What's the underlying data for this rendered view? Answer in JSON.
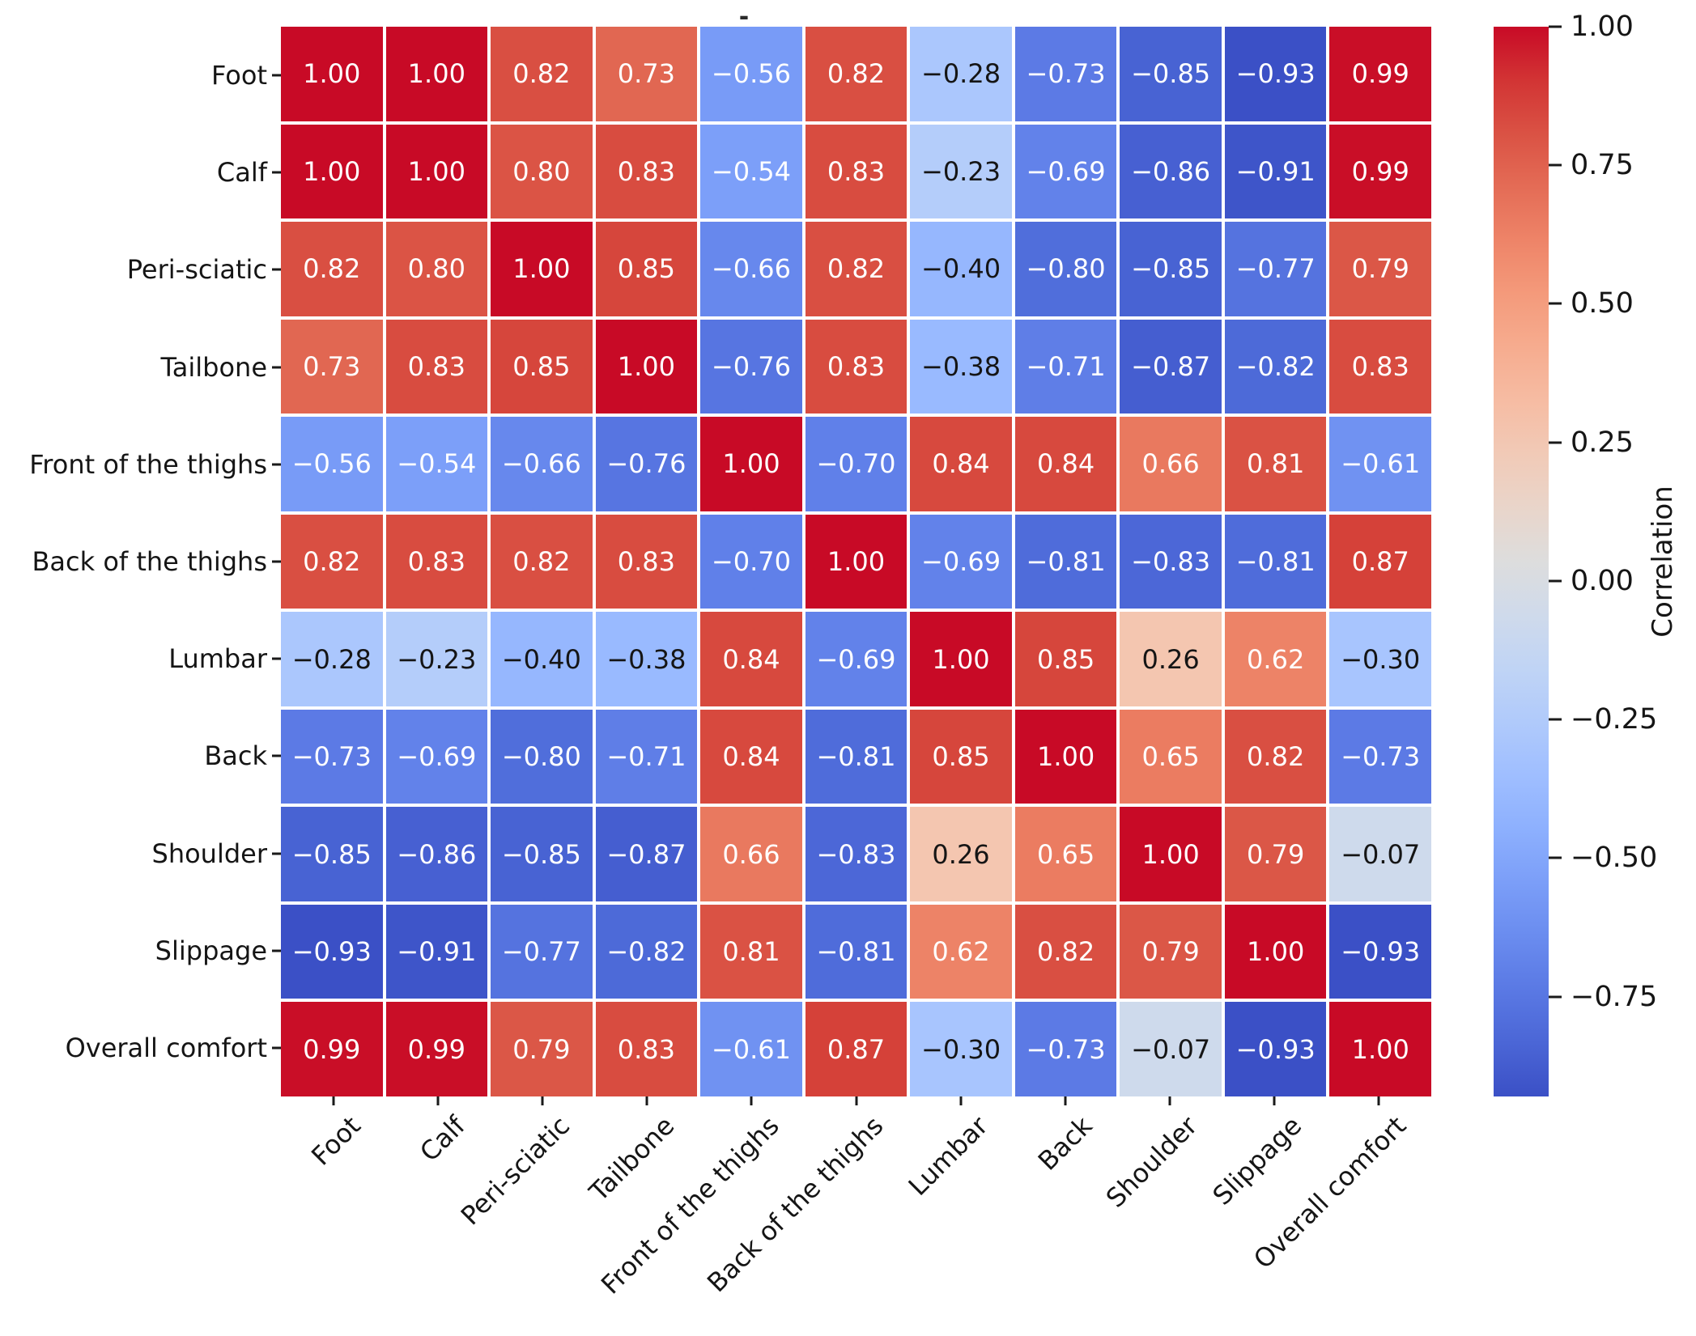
{
  "title": "-",
  "chart_data": {
    "type": "heatmap",
    "title": "-",
    "categories": [
      "Foot",
      "Calf",
      "Peri-sciatic",
      "Tailbone",
      "Front of the thighs",
      "Back of the thighs",
      "Lumbar",
      "Back",
      "Shoulder",
      "Slippage",
      "Overall comfort"
    ],
    "matrix": [
      [
        1.0,
        1.0,
        0.82,
        0.73,
        -0.56,
        0.82,
        -0.28,
        -0.73,
        -0.85,
        -0.93,
        0.99
      ],
      [
        1.0,
        1.0,
        0.8,
        0.83,
        -0.54,
        0.83,
        -0.23,
        -0.69,
        -0.86,
        -0.91,
        0.99
      ],
      [
        0.82,
        0.8,
        1.0,
        0.85,
        -0.66,
        0.82,
        -0.4,
        -0.8,
        -0.85,
        -0.77,
        0.79
      ],
      [
        0.73,
        0.83,
        0.85,
        1.0,
        -0.76,
        0.83,
        -0.38,
        -0.71,
        -0.87,
        -0.82,
        0.83
      ],
      [
        -0.56,
        -0.54,
        -0.66,
        -0.76,
        1.0,
        -0.7,
        0.84,
        0.84,
        0.66,
        0.81,
        -0.61
      ],
      [
        0.82,
        0.83,
        0.82,
        0.83,
        -0.7,
        1.0,
        -0.69,
        -0.81,
        -0.83,
        -0.81,
        0.87
      ],
      [
        -0.28,
        -0.23,
        -0.4,
        -0.38,
        0.84,
        -0.69,
        1.0,
        0.85,
        0.26,
        0.62,
        -0.3
      ],
      [
        -0.73,
        -0.69,
        -0.8,
        -0.71,
        0.84,
        -0.81,
        0.85,
        1.0,
        0.65,
        0.82,
        -0.73
      ],
      [
        -0.85,
        -0.86,
        -0.85,
        -0.87,
        0.66,
        -0.83,
        0.26,
        0.65,
        1.0,
        0.79,
        -0.07
      ],
      [
        -0.93,
        -0.91,
        -0.77,
        -0.82,
        0.81,
        -0.81,
        0.62,
        0.82,
        0.79,
        1.0,
        -0.93
      ],
      [
        0.99,
        0.99,
        0.79,
        0.83,
        -0.61,
        0.87,
        -0.3,
        -0.73,
        -0.07,
        -0.93,
        1.0
      ]
    ],
    "vmin": -0.93,
    "vmax": 1.0,
    "value_format": "0.00",
    "colormap": "coolwarm",
    "colors": {
      "max_red": "#C80A26",
      "mid_gray": "#DDDDDD",
      "min_blue": "#3B50C6",
      "grid_line": "#FFFFFF",
      "label_text": "#151515",
      "annotation_light": "#FFFFFF",
      "annotation_dark": "#151515"
    },
    "colorbar": {
      "label": "Correlation",
      "ticks": [
        {
          "label": "1.00",
          "value": 1.0
        },
        {
          "label": "0.75",
          "value": 0.75
        },
        {
          "label": "0.50",
          "value": 0.5
        },
        {
          "label": "0.25",
          "value": 0.25
        },
        {
          "label": "0.00",
          "value": 0.0
        },
        {
          "label": "−0.25",
          "value": -0.25
        },
        {
          "label": "−0.50",
          "value": -0.5
        },
        {
          "label": "−0.75",
          "value": -0.75
        }
      ],
      "position": "right"
    },
    "x_tick_rotation_deg": 45,
    "grid": false,
    "legend": "colorbar"
  }
}
